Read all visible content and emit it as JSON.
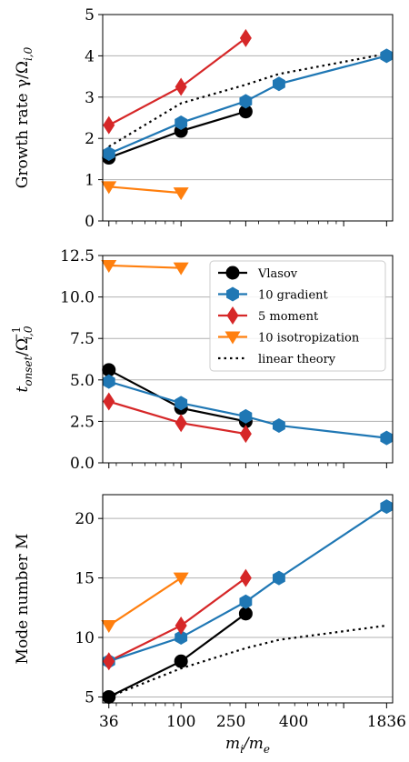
{
  "chart_data": [
    {
      "type": "line",
      "ylabel": "Growth rate γ/Ω",
      "ylabel_sub": "i,0",
      "xscale": "log",
      "xlim": [
        33,
        2000
      ],
      "ylim": [
        0,
        5
      ],
      "yticks": [
        0,
        1,
        2,
        3,
        4,
        5
      ],
      "ytick_labels": [
        "0",
        "1",
        "2",
        "3",
        "4",
        "5"
      ],
      "grid": "horizontal",
      "series": [
        {
          "name": "Vlasov",
          "color": "#000000",
          "marker": "circle",
          "x": [
            36,
            100,
            250
          ],
          "y": [
            1.53,
            2.18,
            2.65
          ]
        },
        {
          "name": "10 gradient",
          "color": "#1f77b4",
          "marker": "hexagon",
          "x": [
            36,
            100,
            250,
            400,
            1836
          ],
          "y": [
            1.63,
            2.38,
            2.9,
            3.32,
            4.0
          ]
        },
        {
          "name": "5 moment",
          "color": "#d62728",
          "marker": "diamond",
          "x": [
            36,
            100,
            250
          ],
          "y": [
            2.32,
            3.25,
            4.43
          ]
        },
        {
          "name": "10 isotropization",
          "color": "#ff7f0e",
          "marker": "triangle-down",
          "x": [
            36,
            100
          ],
          "y": [
            0.83,
            0.68
          ]
        },
        {
          "name": "linear theory",
          "color": "#000000",
          "dashed": true,
          "x": [
            36,
            100,
            250,
            400,
            1836
          ],
          "y": [
            1.8,
            2.85,
            3.3,
            3.56,
            4.05
          ]
        }
      ]
    },
    {
      "type": "line",
      "ylabel": "t",
      "ylabel_sub": "onset",
      "ylabel_mid": "/Ω",
      "ylabel_sub2": "i,0",
      "ylabel_sup": "−1",
      "xscale": "log",
      "xlim": [
        33,
        2000
      ],
      "ylim": [
        0,
        12.5
      ],
      "yticks": [
        0,
        2.5,
        5,
        7.5,
        10,
        12.5
      ],
      "ytick_labels": [
        "0.0",
        "2.5",
        "5.0",
        "7.5",
        "10.0",
        "12.5"
      ],
      "grid": "horizontal",
      "legend_position": "upper-right",
      "series": [
        {
          "name": "Vlasov",
          "color": "#000000",
          "marker": "circle",
          "x": [
            36,
            100,
            250
          ],
          "y": [
            5.6,
            3.3,
            2.5
          ]
        },
        {
          "name": "10 gradient",
          "color": "#1f77b4",
          "marker": "hexagon",
          "x": [
            36,
            100,
            250,
            400,
            1836
          ],
          "y": [
            4.9,
            3.6,
            2.8,
            2.25,
            1.5
          ]
        },
        {
          "name": "5 moment",
          "color": "#d62728",
          "marker": "diamond",
          "x": [
            36,
            100,
            250
          ],
          "y": [
            3.7,
            2.4,
            1.75
          ]
        },
        {
          "name": "10 isotropization",
          "color": "#ff7f0e",
          "marker": "triangle-down",
          "x": [
            36,
            100
          ],
          "y": [
            11.9,
            11.75
          ]
        }
      ]
    },
    {
      "type": "line",
      "ylabel": "Mode number M",
      "xlabel": "m",
      "xlabel_sub1": "i",
      "xlabel_mid": "/m",
      "xlabel_sub2": "e",
      "xscale": "log",
      "xlim": [
        33,
        2000
      ],
      "ylim": [
        4.5,
        22
      ],
      "yticks": [
        5,
        10,
        15,
        20
      ],
      "ytick_labels": [
        "5",
        "10",
        "15",
        "20"
      ],
      "xticks": [
        36,
        100,
        250,
        400,
        1836
      ],
      "xtick_labels": [
        "36",
        "100",
        "250",
        "400",
        "1836"
      ],
      "grid": "horizontal",
      "series": [
        {
          "name": "Vlasov",
          "color": "#000000",
          "marker": "circle",
          "x": [
            36,
            100,
            250
          ],
          "y": [
            5,
            8,
            12
          ]
        },
        {
          "name": "10 gradient",
          "color": "#1f77b4",
          "marker": "hexagon",
          "x": [
            36,
            100,
            250,
            400,
            1836
          ],
          "y": [
            8,
            10,
            13,
            15,
            21
          ]
        },
        {
          "name": "5 moment",
          "color": "#d62728",
          "marker": "diamond",
          "x": [
            36,
            100,
            250
          ],
          "y": [
            8,
            11,
            15
          ]
        },
        {
          "name": "10 isotropization",
          "color": "#ff7f0e",
          "marker": "triangle-down",
          "x": [
            36,
            100
          ],
          "y": [
            11,
            15
          ]
        },
        {
          "name": "linear theory",
          "color": "#000000",
          "dashed": true,
          "x": [
            36,
            100,
            250,
            400,
            1836
          ],
          "y": [
            5,
            7.4,
            9.1,
            9.8,
            11
          ]
        }
      ]
    }
  ],
  "legend": [
    {
      "label": "Vlasov",
      "color": "#000000",
      "marker": "circle"
    },
    {
      "label": "10 gradient",
      "color": "#1f77b4",
      "marker": "hexagon"
    },
    {
      "label": "5 moment",
      "color": "#d62728",
      "marker": "diamond"
    },
    {
      "label": "10 isotropization",
      "color": "#ff7f0e",
      "marker": "triangle-down"
    },
    {
      "label": "linear theory",
      "color": "#000000",
      "marker": "none",
      "dashed": true
    }
  ]
}
